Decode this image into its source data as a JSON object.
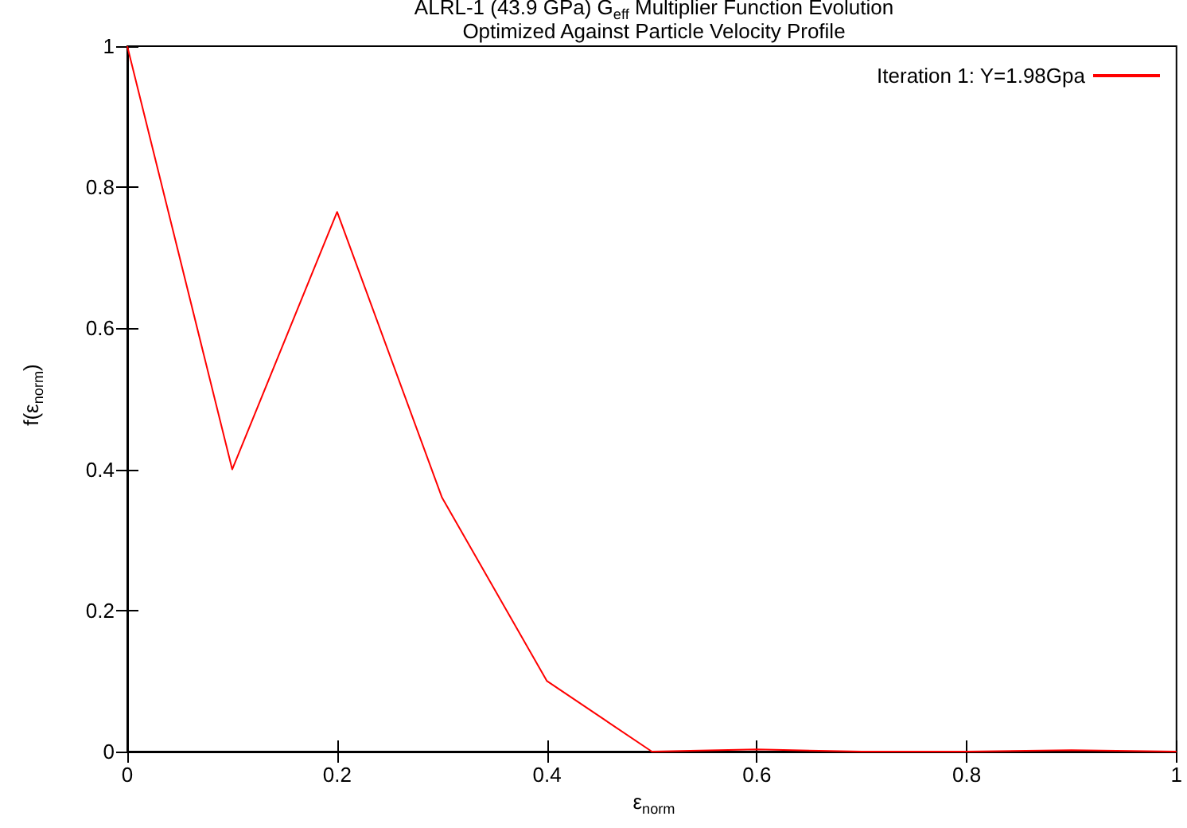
{
  "chart_data": {
    "type": "line",
    "title": "ALRL-1 (43.9 GPa) G$_{eff}$ Multiplier Function Evolution\nOptimized Against Particle Velocity Profile",
    "xlabel": "ε$_{norm}$",
    "ylabel": "f(ε$_{norm}$)",
    "x": [
      0,
      0.1,
      0.2,
      0.3,
      0.4,
      0.5,
      0.6,
      0.7,
      0.8,
      0.9,
      1
    ],
    "series": [
      {
        "name": "Iteration 1: Y=1.98Gpa",
        "color": "#ff0000",
        "values": [
          1,
          0.4,
          0.765,
          0.36,
          0.1,
          0,
          0.003,
          0,
          0,
          0.002,
          0
        ]
      }
    ],
    "xlim": [
      0,
      1
    ],
    "xticks": [
      0,
      0.2,
      0.4,
      0.6,
      0.8,
      1
    ],
    "ylim": [
      0,
      1
    ],
    "yticks": [
      0,
      0.2,
      0.4,
      0.6,
      0.8,
      1
    ],
    "grid": false,
    "legend": "top right",
    "marker": "none",
    "line_style": "solid"
  }
}
